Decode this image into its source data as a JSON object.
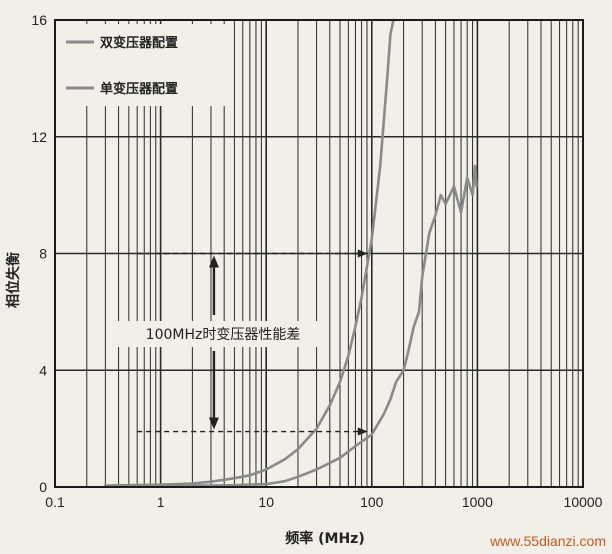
{
  "chart_data": {
    "type": "line",
    "xlabel": "频率 (MHz)",
    "ylabel": "相位失衡",
    "xscale": "log",
    "xlim": [
      0.1,
      10000
    ],
    "ylim": [
      0,
      16
    ],
    "xticks": [
      "0.1",
      "1",
      "10",
      "100",
      "1000",
      "10000"
    ],
    "yticks": [
      "0",
      "4",
      "8",
      "12",
      "16"
    ],
    "grid": true,
    "legend": "top-left",
    "series": [
      {
        "name": "双变压器配置",
        "color": "#8a8a8a",
        "x": [
          0.3,
          1,
          2,
          3,
          5,
          7,
          10,
          15,
          20,
          30,
          40,
          50,
          60,
          70,
          80,
          100,
          120,
          140,
          150,
          160
        ],
        "y": [
          0.05,
          0.08,
          0.12,
          0.18,
          0.3,
          0.4,
          0.6,
          0.95,
          1.3,
          2.0,
          2.8,
          3.6,
          4.5,
          5.5,
          6.5,
          8.5,
          11.0,
          14.0,
          15.5,
          16.0
        ]
      },
      {
        "name": "单变压器配置",
        "color": "#8a8a8a",
        "x": [
          0.3,
          1,
          5,
          10,
          15,
          20,
          30,
          50,
          70,
          100,
          130,
          150,
          170,
          200,
          220,
          250,
          280,
          300,
          350,
          400,
          450,
          500,
          600,
          700,
          800,
          900,
          950,
          980
        ],
        "y": [
          0.02,
          0.03,
          0.06,
          0.1,
          0.2,
          0.35,
          0.6,
          1.0,
          1.4,
          1.8,
          2.5,
          3.0,
          3.6,
          4.0,
          4.6,
          5.5,
          6.0,
          7.2,
          8.7,
          9.3,
          10.0,
          9.7,
          10.3,
          9.4,
          10.6,
          10.0,
          11.0,
          10.3
        ]
      }
    ],
    "annotation": {
      "text": "100MHz时变压器性能差",
      "x": 100,
      "y_top": 8,
      "y_bottom": 1.9
    }
  },
  "watermark": "www.55dianzi.com"
}
